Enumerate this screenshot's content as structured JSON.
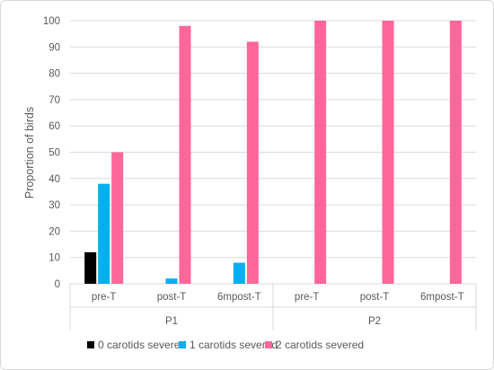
{
  "chart_data": {
    "type": "bar",
    "title": "",
    "xlabel": "",
    "ylabel": "Proportion of birds",
    "ylim": [
      0,
      100
    ],
    "yticks": [
      0,
      10,
      20,
      30,
      40,
      50,
      60,
      70,
      80,
      90,
      100
    ],
    "grid": true,
    "legend_position": "bottom",
    "groups": [
      {
        "label": "P1",
        "categories": [
          "pre-T",
          "post-T",
          "6mpost-T"
        ]
      },
      {
        "label": "P2",
        "categories": [
          "pre-T",
          "post-T",
          "6mpost-T"
        ]
      }
    ],
    "categories": [
      "pre-T",
      "post-T",
      "6mpost-T",
      "pre-T",
      "post-T",
      "6mpost-T"
    ],
    "series": [
      {
        "name": "0 carotids severed",
        "color": "#000000",
        "values": [
          12,
          0,
          0,
          0,
          0,
          0
        ]
      },
      {
        "name": "1 carotids severed",
        "color": "#00b0f0",
        "values": [
          38,
          2,
          8,
          0,
          0,
          0
        ]
      },
      {
        "name": "2 carotids severed",
        "color": "#ff6699",
        "values": [
          50,
          98,
          92,
          100,
          100,
          100
        ]
      }
    ]
  }
}
